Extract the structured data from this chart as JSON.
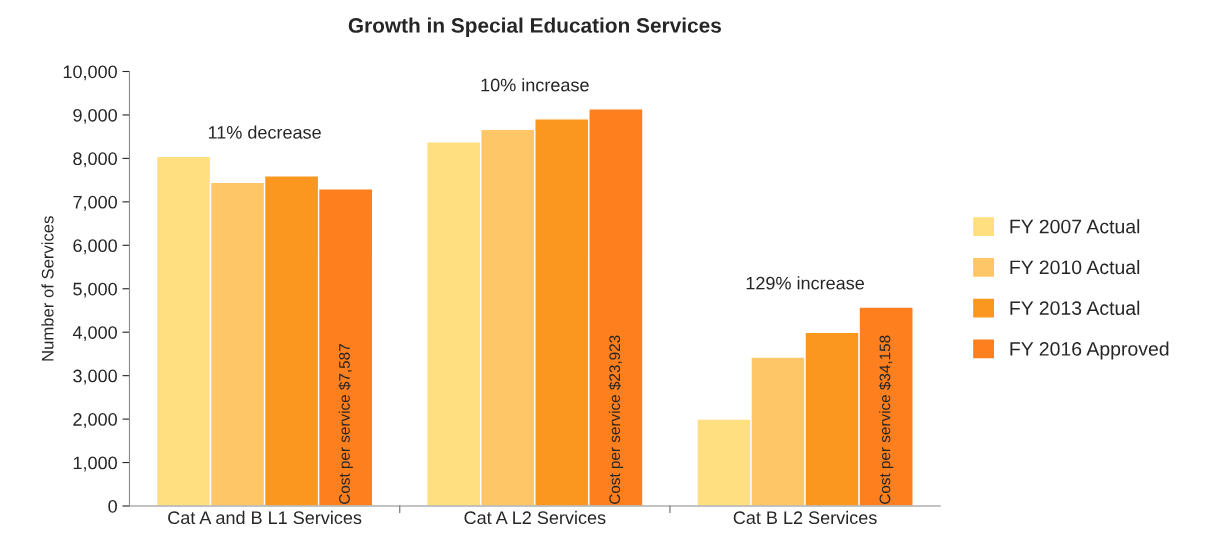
{
  "chart_data": {
    "type": "bar",
    "title": "Growth in Special Education Services",
    "ylabel": "Number of Services",
    "categories": [
      "Cat A and B L1 Services",
      "Cat A L2 Services",
      "Cat B L2 Services"
    ],
    "series": [
      {
        "name": "FY 2007 Actual",
        "color": "#ffdf7f",
        "values": [
          8050,
          8380,
          2000
        ]
      },
      {
        "name": "FY 2010 Actual",
        "color": "#fec667",
        "values": [
          7450,
          8670,
          3430
        ]
      },
      {
        "name": "FY 2013 Actual",
        "color": "#fb961e",
        "values": [
          7600,
          8910,
          4000
        ]
      },
      {
        "name": "FY 2016 Approved",
        "color": "#fe7f1e",
        "values": [
          7300,
          9140,
          4580
        ],
        "value_labels": [
          "Cost per service $7,587",
          "Cost per service $23,923",
          "Cost per service $34,158"
        ]
      }
    ],
    "annotations": [
      "11% decrease",
      "10% increase",
      "129% increase"
    ],
    "ylim": [
      0,
      10000
    ],
    "yticks": [
      {
        "value": 0,
        "label": "0"
      },
      {
        "value": 1000,
        "label": "1,000"
      },
      {
        "value": 2000,
        "label": "2,000"
      },
      {
        "value": 3000,
        "label": "3,000"
      },
      {
        "value": 4000,
        "label": "4,000"
      },
      {
        "value": 5000,
        "label": "5,000"
      },
      {
        "value": 6000,
        "label": "6,000"
      },
      {
        "value": 7000,
        "label": "7,000"
      },
      {
        "value": 8000,
        "label": "8,000"
      },
      {
        "value": 9000,
        "label": "9,000"
      },
      {
        "value": 10000,
        "label": "10,000"
      }
    ],
    "grid": false,
    "legend": "right"
  }
}
